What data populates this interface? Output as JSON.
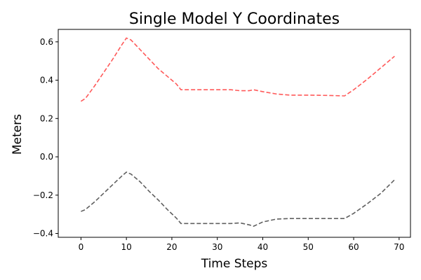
{
  "chart_data": {
    "type": "line",
    "title": "Single Model Y Coordinates",
    "xlabel": "Time Steps",
    "ylabel": "Meters",
    "xlim": [
      -5,
      72.5
    ],
    "ylim": [
      -0.42,
      0.665
    ],
    "xticks": [
      0,
      10,
      20,
      30,
      40,
      50,
      60,
      70
    ],
    "yticks": [
      -0.4,
      -0.2,
      0.0,
      0.2,
      0.4,
      0.6
    ],
    "ytick_labels": [
      "−0.4",
      "−0.2",
      "0.0",
      "0.2",
      "0.4",
      "0.6"
    ],
    "grid": false,
    "legend": "none",
    "series": [
      {
        "color": "#ff5a5a",
        "style": "dashed",
        "x": [
          0,
          1,
          3,
          5,
          7,
          9,
          10,
          11,
          13,
          15,
          17,
          19,
          21,
          22,
          25,
          30,
          33,
          35,
          37,
          38,
          40,
          43,
          46,
          50,
          55,
          58,
          60,
          63,
          66,
          69
        ],
        "y": [
          0.29,
          0.305,
          0.37,
          0.44,
          0.51,
          0.585,
          0.62,
          0.61,
          0.56,
          0.51,
          0.46,
          0.42,
          0.38,
          0.35,
          0.35,
          0.35,
          0.35,
          0.345,
          0.345,
          0.35,
          0.34,
          0.328,
          0.322,
          0.322,
          0.32,
          0.318,
          0.35,
          0.405,
          0.465,
          0.525
        ]
      },
      {
        "color": "#606060",
        "style": "dashed",
        "x": [
          0,
          1,
          3,
          5,
          7,
          9,
          10,
          11,
          13,
          15,
          17,
          19,
          21,
          22,
          25,
          30,
          33,
          35,
          37,
          38,
          40,
          43,
          46,
          50,
          55,
          58,
          60,
          63,
          66,
          69
        ],
        "y": [
          -0.285,
          -0.275,
          -0.235,
          -0.19,
          -0.145,
          -0.1,
          -0.08,
          -0.09,
          -0.13,
          -0.18,
          -0.225,
          -0.275,
          -0.32,
          -0.348,
          -0.348,
          -0.348,
          -0.348,
          -0.345,
          -0.355,
          -0.362,
          -0.34,
          -0.325,
          -0.322,
          -0.322,
          -0.322,
          -0.322,
          -0.295,
          -0.245,
          -0.19,
          -0.12
        ]
      }
    ]
  }
}
